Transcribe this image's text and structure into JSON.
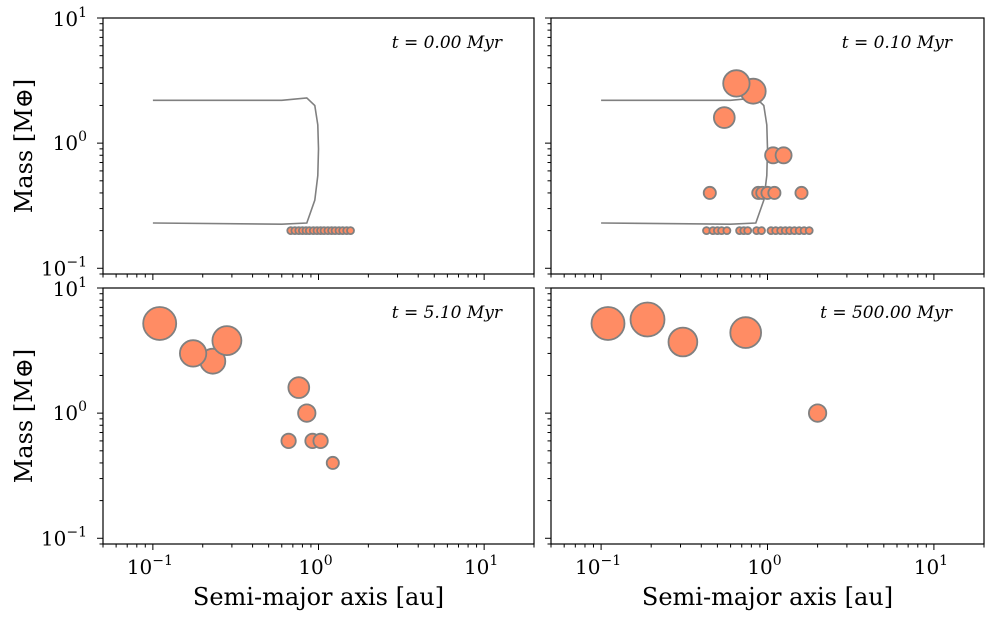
{
  "figure": {
    "xlabel": "Semi-major axis [au]",
    "ylabel": "Mass [M⊕]",
    "xticks": [
      {
        "value": 0.1,
        "base": "10",
        "exp": "−1"
      },
      {
        "value": 1,
        "base": "10",
        "exp": "0"
      },
      {
        "value": 10,
        "base": "10",
        "exp": "1"
      }
    ],
    "yticks": [
      {
        "value": 0.1,
        "base": "10",
        "exp": "−1"
      },
      {
        "value": 1,
        "base": "10",
        "exp": "0"
      },
      {
        "value": 10,
        "base": "10",
        "exp": "1"
      }
    ]
  },
  "chart_data": [
    {
      "type": "scatter",
      "panel": "top-left",
      "time_label": "t = 0.00 Myr",
      "xscale": "log",
      "yscale": "log",
      "xlim": [
        0.05,
        20
      ],
      "ylim": [
        0.09,
        10
      ],
      "point_color": "#ff8c64",
      "edge_color": "#808080",
      "boundary_curves": [
        {
          "x": [
            0.1,
            0.6,
            0.85,
            0.95,
            0.99,
            1.0,
            0.99,
            0.95,
            0.85,
            0.6,
            0.1
          ],
          "y": [
            2.2,
            2.2,
            2.3,
            2.0,
            1.4,
            0.9,
            0.55,
            0.35,
            0.23,
            0.225,
            0.23
          ]
        }
      ],
      "points": [
        {
          "x": 0.68,
          "y": 0.2,
          "mass": 0.2
        },
        {
          "x": 0.72,
          "y": 0.2,
          "mass": 0.2
        },
        {
          "x": 0.76,
          "y": 0.2,
          "mass": 0.2
        },
        {
          "x": 0.8,
          "y": 0.2,
          "mass": 0.2
        },
        {
          "x": 0.84,
          "y": 0.2,
          "mass": 0.2
        },
        {
          "x": 0.88,
          "y": 0.2,
          "mass": 0.2
        },
        {
          "x": 0.93,
          "y": 0.2,
          "mass": 0.2
        },
        {
          "x": 0.98,
          "y": 0.2,
          "mass": 0.2
        },
        {
          "x": 1.03,
          "y": 0.2,
          "mass": 0.2
        },
        {
          "x": 1.08,
          "y": 0.2,
          "mass": 0.2
        },
        {
          "x": 1.14,
          "y": 0.2,
          "mass": 0.2
        },
        {
          "x": 1.2,
          "y": 0.2,
          "mass": 0.2
        },
        {
          "x": 1.26,
          "y": 0.2,
          "mass": 0.2
        },
        {
          "x": 1.33,
          "y": 0.2,
          "mass": 0.2
        },
        {
          "x": 1.4,
          "y": 0.2,
          "mass": 0.2
        },
        {
          "x": 1.48,
          "y": 0.2,
          "mass": 0.2
        },
        {
          "x": 1.56,
          "y": 0.2,
          "mass": 0.2
        }
      ]
    },
    {
      "type": "scatter",
      "panel": "top-right",
      "time_label": "t = 0.10 Myr",
      "xscale": "log",
      "yscale": "log",
      "xlim": [
        0.05,
        20
      ],
      "ylim": [
        0.09,
        10
      ],
      "point_color": "#ff8c64",
      "edge_color": "#808080",
      "boundary_curves": [
        {
          "x": [
            0.1,
            0.6,
            0.85,
            0.95,
            0.99,
            1.0,
            0.99,
            0.95,
            0.85,
            0.6,
            0.1
          ],
          "y": [
            2.2,
            2.2,
            2.3,
            2.0,
            1.4,
            0.9,
            0.55,
            0.35,
            0.23,
            0.225,
            0.23
          ]
        }
      ],
      "points": [
        {
          "x": 0.65,
          "y": 3.0,
          "mass": 3.0
        },
        {
          "x": 0.82,
          "y": 2.6,
          "mass": 2.6
        },
        {
          "x": 0.55,
          "y": 1.6,
          "mass": 1.6
        },
        {
          "x": 1.08,
          "y": 0.8,
          "mass": 0.8
        },
        {
          "x": 1.25,
          "y": 0.8,
          "mass": 0.8
        },
        {
          "x": 0.45,
          "y": 0.4,
          "mass": 0.4
        },
        {
          "x": 0.88,
          "y": 0.4,
          "mass": 0.4
        },
        {
          "x": 0.93,
          "y": 0.4,
          "mass": 0.4
        },
        {
          "x": 1.0,
          "y": 0.4,
          "mass": 0.4
        },
        {
          "x": 1.1,
          "y": 0.4,
          "mass": 0.4
        },
        {
          "x": 1.6,
          "y": 0.4,
          "mass": 0.4
        },
        {
          "x": 0.43,
          "y": 0.2,
          "mass": 0.2
        },
        {
          "x": 0.47,
          "y": 0.2,
          "mass": 0.2
        },
        {
          "x": 0.5,
          "y": 0.2,
          "mass": 0.2
        },
        {
          "x": 0.53,
          "y": 0.2,
          "mass": 0.2
        },
        {
          "x": 0.57,
          "y": 0.2,
          "mass": 0.2
        },
        {
          "x": 0.68,
          "y": 0.2,
          "mass": 0.2
        },
        {
          "x": 0.72,
          "y": 0.2,
          "mass": 0.2
        },
        {
          "x": 0.76,
          "y": 0.2,
          "mass": 0.2
        },
        {
          "x": 0.86,
          "y": 0.2,
          "mass": 0.2
        },
        {
          "x": 0.92,
          "y": 0.2,
          "mass": 0.2
        },
        {
          "x": 1.05,
          "y": 0.2,
          "mass": 0.2
        },
        {
          "x": 1.12,
          "y": 0.2,
          "mass": 0.2
        },
        {
          "x": 1.2,
          "y": 0.2,
          "mass": 0.2
        },
        {
          "x": 1.28,
          "y": 0.2,
          "mass": 0.2
        },
        {
          "x": 1.36,
          "y": 0.2,
          "mass": 0.2
        },
        {
          "x": 1.45,
          "y": 0.2,
          "mass": 0.2
        },
        {
          "x": 1.55,
          "y": 0.2,
          "mass": 0.2
        },
        {
          "x": 1.66,
          "y": 0.2,
          "mass": 0.2
        },
        {
          "x": 1.78,
          "y": 0.2,
          "mass": 0.2
        }
      ]
    },
    {
      "type": "scatter",
      "panel": "bottom-left",
      "time_label": "t = 5.10 Myr",
      "xscale": "log",
      "yscale": "log",
      "xlim": [
        0.05,
        20
      ],
      "ylim": [
        0.09,
        10
      ],
      "point_color": "#ff8c64",
      "edge_color": "#808080",
      "boundary_curves": [],
      "points": [
        {
          "x": 0.11,
          "y": 5.2,
          "mass": 5.2
        },
        {
          "x": 0.175,
          "y": 3.0,
          "mass": 3.0
        },
        {
          "x": 0.23,
          "y": 2.6,
          "mass": 2.6
        },
        {
          "x": 0.28,
          "y": 3.8,
          "mass": 3.8
        },
        {
          "x": 0.76,
          "y": 1.6,
          "mass": 1.6
        },
        {
          "x": 0.85,
          "y": 1.0,
          "mass": 1.0
        },
        {
          "x": 0.66,
          "y": 0.6,
          "mass": 0.6
        },
        {
          "x": 0.92,
          "y": 0.6,
          "mass": 0.6
        },
        {
          "x": 1.03,
          "y": 0.6,
          "mass": 0.6
        },
        {
          "x": 1.22,
          "y": 0.4,
          "mass": 0.4
        }
      ]
    },
    {
      "type": "scatter",
      "panel": "bottom-right",
      "time_label": "t = 500.00 Myr",
      "xscale": "log",
      "yscale": "log",
      "xlim": [
        0.05,
        20
      ],
      "ylim": [
        0.09,
        10
      ],
      "point_color": "#ff8c64",
      "edge_color": "#808080",
      "boundary_curves": [],
      "points": [
        {
          "x": 0.11,
          "y": 5.2,
          "mass": 5.2
        },
        {
          "x": 0.19,
          "y": 5.6,
          "mass": 5.6
        },
        {
          "x": 0.31,
          "y": 3.7,
          "mass": 3.7
        },
        {
          "x": 0.74,
          "y": 4.4,
          "mass": 4.4
        },
        {
          "x": 2.0,
          "y": 1.0,
          "mass": 1.0
        }
      ]
    }
  ]
}
